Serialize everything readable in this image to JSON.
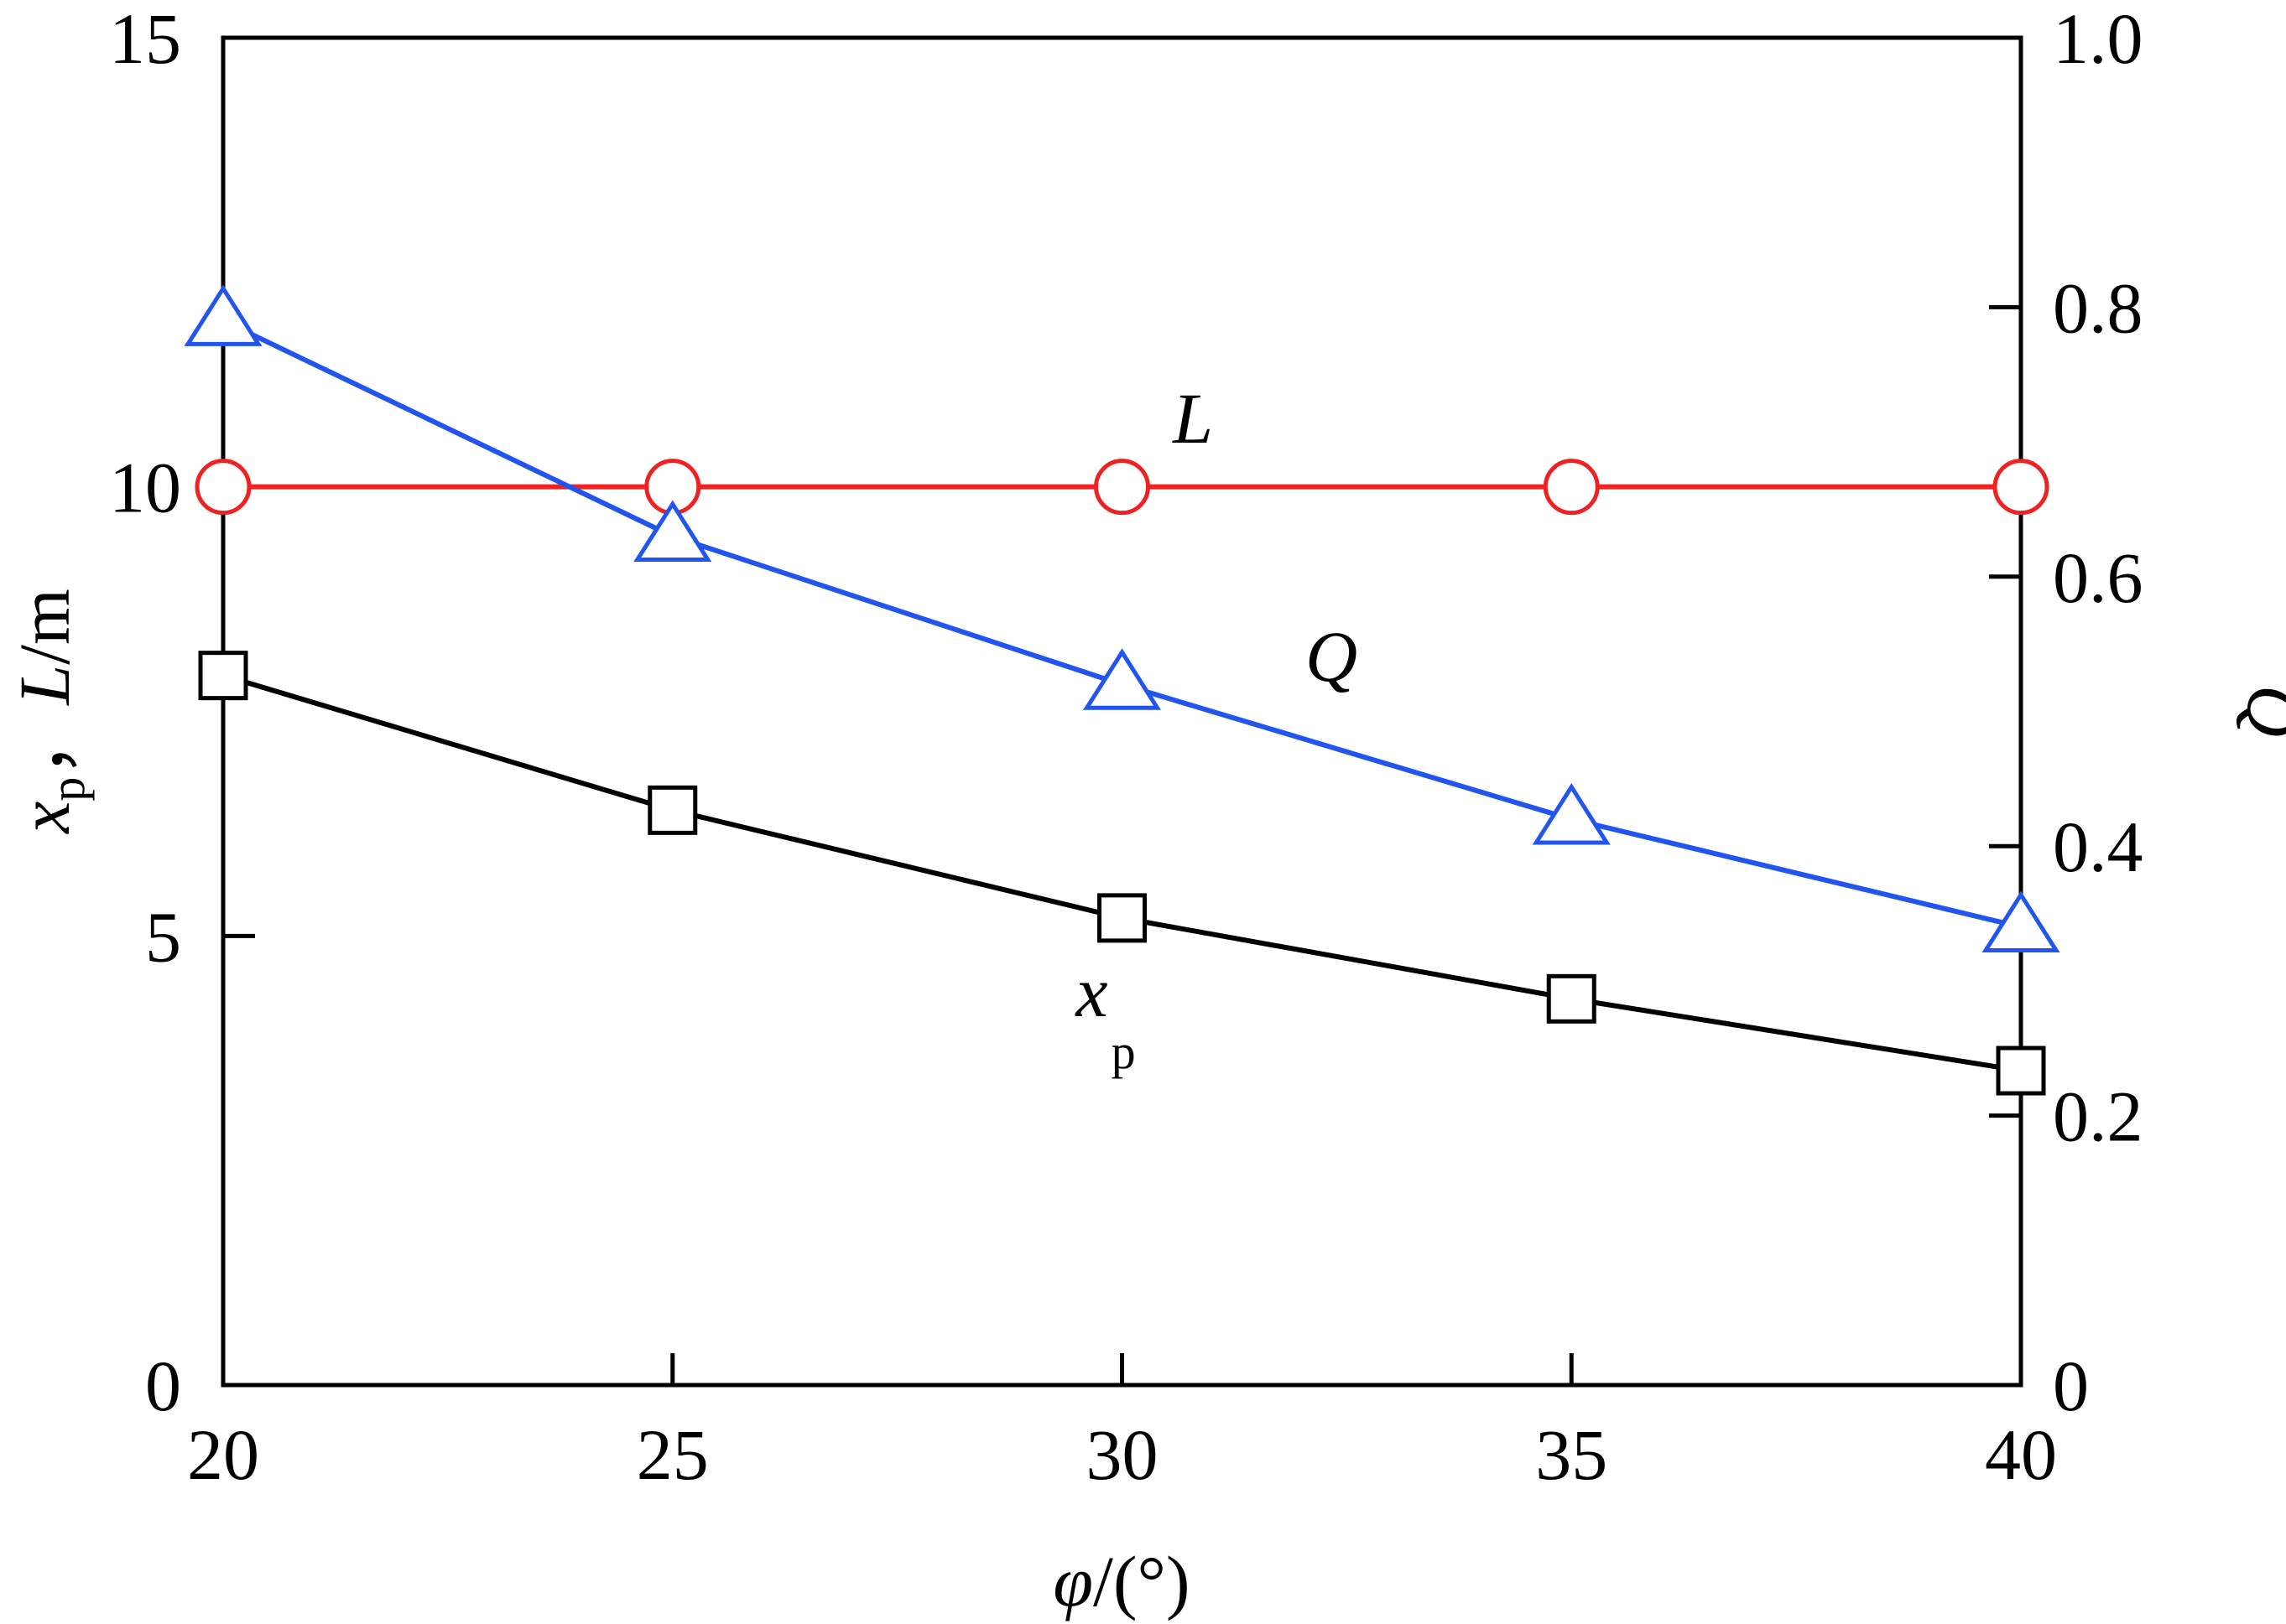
{
  "chart_data": {
    "type": "line",
    "x": [
      20,
      25,
      30,
      35,
      40
    ],
    "xlim": [
      20,
      40
    ],
    "ylim_left": [
      0,
      15
    ],
    "ylim_right": [
      0,
      1.0
    ],
    "xticks": [
      "20",
      "25",
      "30",
      "35",
      "40"
    ],
    "yticks_left": [
      "0",
      "5",
      "10",
      "15"
    ],
    "yticks_right": [
      "0",
      "0.2",
      "0.4",
      "0.6",
      "0.8",
      "1.0"
    ],
    "xlabel": {
      "main": "φ",
      "unit": "/(°)"
    },
    "ylabel_left": {
      "var1": "x",
      "sub1": "p",
      "sep": "，",
      "var2": "L",
      "unit": "/m"
    },
    "ylabel_right": "Q",
    "grid": false,
    "legend": "none",
    "series": [
      {
        "name": "L",
        "axis": "left",
        "marker": "circle",
        "color": "#ee2222",
        "values": [
          10.0,
          10.0,
          10.0,
          10.0,
          10.0
        ]
      },
      {
        "name": "Q",
        "axis": "right",
        "marker": "triangle",
        "color": "#2255ee",
        "values": [
          0.79,
          0.63,
          0.52,
          0.42,
          0.34
        ]
      },
      {
        "name": "xp",
        "axis": "left",
        "marker": "square",
        "color": "#000000",
        "values": [
          7.9,
          6.4,
          5.2,
          4.3,
          3.5
        ]
      }
    ],
    "annotations": {
      "L": {
        "text": "L"
      },
      "Q": {
        "text": "Q"
      },
      "xp": {
        "main": "x",
        "sub": "p"
      }
    }
  }
}
